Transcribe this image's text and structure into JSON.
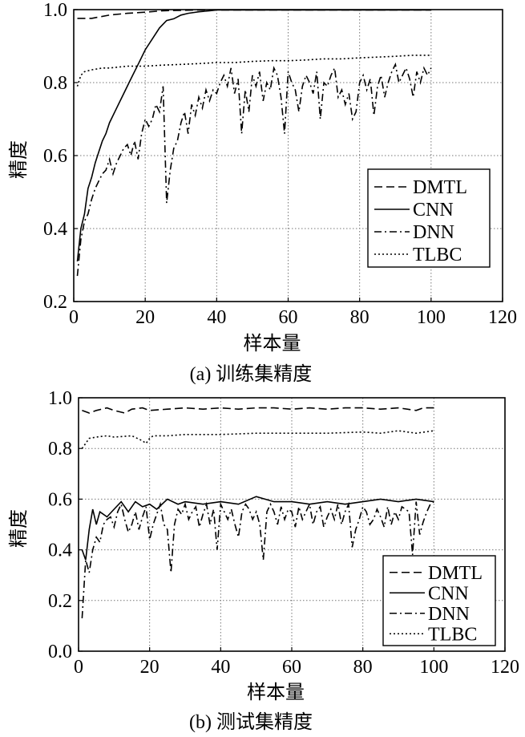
{
  "chart_data": [
    {
      "type": "line",
      "caption": "(a) 训练集精度",
      "xlabel": "样本量",
      "ylabel": "精度",
      "xlim": [
        0,
        120
      ],
      "ylim": [
        0.2,
        1.0
      ],
      "xticks": [
        "0",
        "20",
        "40",
        "60",
        "80",
        "100",
        "120"
      ],
      "yticks": [
        "0.2",
        "0.4",
        "0.6",
        "0.8",
        "1.0"
      ],
      "grid": true,
      "legend_position": "lower-right",
      "series": [
        {
          "name": "DMTL",
          "x": [
            1,
            5,
            10,
            15,
            20,
            25,
            30,
            35,
            40,
            45,
            50,
            55,
            60,
            65,
            70,
            75,
            80,
            85,
            90,
            95,
            100
          ],
          "values": [
            0.976,
            0.976,
            0.985,
            0.99,
            0.993,
            0.997,
            0.998,
            0.999,
            0.999,
            0.999,
            0.999,
            0.999,
            0.999,
            0.999,
            0.999,
            0.999,
            0.999,
            0.999,
            0.999,
            0.999,
            0.999
          ]
        },
        {
          "name": "CNN",
          "x": [
            1,
            2,
            3,
            4,
            5,
            6,
            7,
            8,
            9,
            10,
            12,
            14,
            16,
            18,
            20,
            22,
            24,
            26,
            28,
            30,
            32,
            35,
            38,
            40,
            45,
            50,
            60,
            70,
            80,
            90,
            100
          ],
          "values": [
            0.31,
            0.4,
            0.44,
            0.51,
            0.54,
            0.58,
            0.61,
            0.64,
            0.66,
            0.69,
            0.73,
            0.77,
            0.81,
            0.85,
            0.89,
            0.92,
            0.95,
            0.97,
            0.975,
            0.985,
            0.99,
            0.994,
            0.997,
            0.999,
            0.999,
            0.999,
            0.999,
            0.999,
            0.999,
            0.999,
            0.999
          ]
        },
        {
          "name": "DNN",
          "x": [
            1,
            2,
            3,
            4,
            5,
            6,
            7,
            8,
            9,
            10,
            11,
            12,
            13,
            14,
            15,
            16,
            17,
            18,
            19,
            20,
            21,
            22,
            23,
            24,
            25,
            26,
            27,
            28,
            29,
            30,
            31,
            32,
            33,
            34,
            35,
            36,
            37,
            38,
            39,
            40,
            41,
            42,
            43,
            44,
            45,
            46,
            47,
            48,
            49,
            50,
            51,
            52,
            53,
            54,
            55,
            56,
            57,
            58,
            59,
            60,
            61,
            62,
            63,
            64,
            65,
            66,
            67,
            68,
            69,
            70,
            71,
            72,
            73,
            74,
            75,
            76,
            77,
            78,
            79,
            80,
            81,
            82,
            83,
            84,
            85,
            86,
            87,
            88,
            89,
            90,
            91,
            92,
            93,
            94,
            95,
            96,
            97,
            98,
            99,
            100
          ],
          "values": [
            0.27,
            0.37,
            0.42,
            0.44,
            0.48,
            0.51,
            0.53,
            0.55,
            0.56,
            0.59,
            0.55,
            0.58,
            0.6,
            0.62,
            0.63,
            0.6,
            0.64,
            0.59,
            0.66,
            0.7,
            0.68,
            0.7,
            0.74,
            0.72,
            0.79,
            0.47,
            0.56,
            0.62,
            0.64,
            0.69,
            0.72,
            0.66,
            0.74,
            0.71,
            0.76,
            0.73,
            0.78,
            0.75,
            0.78,
            0.77,
            0.8,
            0.82,
            0.79,
            0.84,
            0.77,
            0.81,
            0.66,
            0.78,
            0.72,
            0.82,
            0.79,
            0.83,
            0.75,
            0.8,
            0.78,
            0.84,
            0.82,
            0.76,
            0.66,
            0.83,
            0.8,
            0.78,
            0.72,
            0.79,
            0.82,
            0.8,
            0.77,
            0.83,
            0.7,
            0.8,
            0.79,
            0.82,
            0.84,
            0.76,
            0.78,
            0.74,
            0.77,
            0.7,
            0.72,
            0.8,
            0.82,
            0.78,
            0.81,
            0.71,
            0.79,
            0.82,
            0.76,
            0.8,
            0.83,
            0.85,
            0.8,
            0.82,
            0.84,
            0.81,
            0.76,
            0.83,
            0.8,
            0.84,
            0.82,
            0.84
          ]
        },
        {
          "name": "TLBC",
          "x": [
            1,
            2,
            3,
            5,
            8,
            10,
            15,
            20,
            25,
            30,
            35,
            40,
            45,
            50,
            55,
            60,
            65,
            70,
            75,
            80,
            85,
            90,
            95,
            100
          ],
          "values": [
            0.79,
            0.82,
            0.83,
            0.835,
            0.84,
            0.84,
            0.845,
            0.845,
            0.848,
            0.85,
            0.852,
            0.855,
            0.855,
            0.858,
            0.86,
            0.86,
            0.862,
            0.865,
            0.865,
            0.868,
            0.87,
            0.872,
            0.875,
            0.875
          ]
        }
      ]
    },
    {
      "type": "line",
      "caption": "(b) 测试集精度",
      "xlabel": "样本量",
      "ylabel": "精度",
      "xlim": [
        0,
        120
      ],
      "ylim": [
        0.0,
        1.0
      ],
      "xticks": [
        "0",
        "20",
        "40",
        "60",
        "80",
        "100",
        "120"
      ],
      "yticks": [
        "0.0",
        "0.2",
        "0.4",
        "0.6",
        "0.8",
        "1.0"
      ],
      "grid": true,
      "legend_position": "lower-right",
      "series": [
        {
          "name": "DMTL",
          "x": [
            1,
            3,
            5,
            8,
            10,
            13,
            15,
            18,
            20,
            25,
            30,
            35,
            40,
            45,
            50,
            55,
            60,
            65,
            70,
            75,
            80,
            85,
            90,
            95,
            97,
            100
          ],
          "values": [
            0.95,
            0.94,
            0.95,
            0.96,
            0.95,
            0.94,
            0.955,
            0.96,
            0.95,
            0.955,
            0.96,
            0.955,
            0.96,
            0.955,
            0.96,
            0.96,
            0.955,
            0.96,
            0.955,
            0.96,
            0.96,
            0.955,
            0.96,
            0.95,
            0.96,
            0.96
          ]
        },
        {
          "name": "CNN",
          "x": [
            1,
            2,
            3,
            4,
            5,
            6,
            8,
            10,
            12,
            14,
            16,
            18,
            20,
            22,
            25,
            28,
            30,
            35,
            40,
            45,
            50,
            55,
            60,
            65,
            70,
            75,
            80,
            85,
            90,
            95,
            100
          ],
          "values": [
            0.4,
            0.36,
            0.48,
            0.56,
            0.5,
            0.55,
            0.53,
            0.56,
            0.59,
            0.55,
            0.59,
            0.57,
            0.58,
            0.56,
            0.6,
            0.58,
            0.59,
            0.58,
            0.59,
            0.58,
            0.61,
            0.59,
            0.59,
            0.58,
            0.59,
            0.58,
            0.59,
            0.6,
            0.59,
            0.6,
            0.59
          ]
        },
        {
          "name": "DNN",
          "x": [
            1,
            2,
            3,
            4,
            5,
            6,
            7,
            8,
            9,
            10,
            11,
            12,
            13,
            14,
            15,
            16,
            17,
            18,
            19,
            20,
            21,
            22,
            23,
            24,
            25,
            26,
            27,
            28,
            29,
            30,
            31,
            32,
            33,
            34,
            35,
            36,
            37,
            38,
            39,
            40,
            41,
            42,
            43,
            44,
            45,
            46,
            47,
            48,
            49,
            50,
            51,
            52,
            53,
            54,
            55,
            56,
            57,
            58,
            59,
            60,
            61,
            62,
            63,
            64,
            65,
            66,
            67,
            68,
            69,
            70,
            71,
            72,
            73,
            74,
            75,
            76,
            77,
            78,
            79,
            80,
            81,
            82,
            83,
            84,
            85,
            86,
            87,
            88,
            89,
            90,
            91,
            92,
            93,
            94,
            95,
            96,
            97,
            98,
            99,
            100
          ],
          "values": [
            0.13,
            0.36,
            0.31,
            0.4,
            0.45,
            0.43,
            0.5,
            0.52,
            0.53,
            0.49,
            0.55,
            0.58,
            0.52,
            0.47,
            0.5,
            0.55,
            0.48,
            0.53,
            0.57,
            0.44,
            0.5,
            0.54,
            0.58,
            0.5,
            0.48,
            0.31,
            0.5,
            0.56,
            0.54,
            0.58,
            0.52,
            0.55,
            0.57,
            0.49,
            0.54,
            0.58,
            0.5,
            0.56,
            0.4,
            0.58,
            0.55,
            0.52,
            0.56,
            0.5,
            0.45,
            0.55,
            0.58,
            0.56,
            0.52,
            0.55,
            0.5,
            0.36,
            0.55,
            0.58,
            0.55,
            0.5,
            0.57,
            0.52,
            0.56,
            0.55,
            0.49,
            0.57,
            0.52,
            0.55,
            0.58,
            0.5,
            0.55,
            0.57,
            0.49,
            0.53,
            0.56,
            0.52,
            0.58,
            0.5,
            0.55,
            0.58,
            0.41,
            0.48,
            0.52,
            0.57,
            0.55,
            0.5,
            0.52,
            0.56,
            0.53,
            0.49,
            0.57,
            0.5,
            0.55,
            0.52,
            0.57,
            0.56,
            0.55,
            0.38,
            0.59,
            0.46,
            0.51,
            0.55,
            0.58,
            0.59
          ]
        },
        {
          "name": "TLBC",
          "x": [
            1,
            2,
            3,
            5,
            8,
            10,
            15,
            18,
            19,
            20,
            21,
            25,
            30,
            40,
            50,
            60,
            70,
            80,
            85,
            90,
            95,
            100
          ],
          "values": [
            0.8,
            0.82,
            0.84,
            0.845,
            0.85,
            0.845,
            0.85,
            0.83,
            0.82,
            0.84,
            0.85,
            0.85,
            0.855,
            0.855,
            0.86,
            0.86,
            0.86,
            0.865,
            0.86,
            0.87,
            0.86,
            0.87
          ]
        }
      ]
    }
  ]
}
